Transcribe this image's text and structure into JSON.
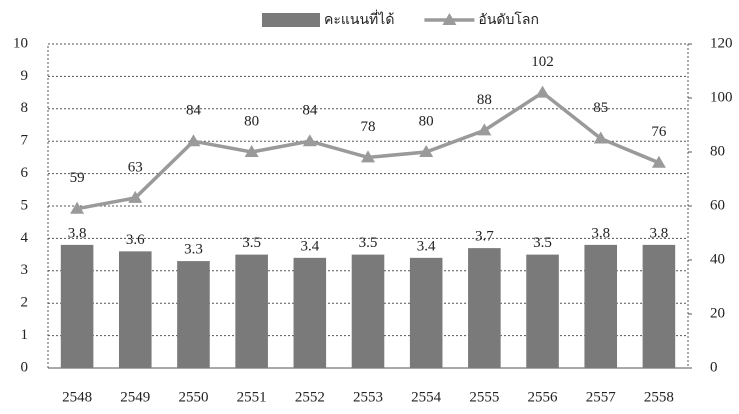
{
  "chart_data": {
    "type": "bar",
    "categories": [
      "2548",
      "2549",
      "2550",
      "2551",
      "2552",
      "2553",
      "2554",
      "2555",
      "2556",
      "2557",
      "2558"
    ],
    "series": [
      {
        "name": "คะแนนที่ได้",
        "type": "bar",
        "color": "#7a7a7a",
        "values": [
          3.8,
          3.6,
          3.3,
          3.5,
          3.4,
          3.5,
          3.4,
          3.7,
          3.5,
          3.8,
          3.8
        ]
      },
      {
        "name": "อันดับโลก",
        "type": "line",
        "axis": "y2",
        "color": "#9a9a9a",
        "values": [
          59,
          63,
          84,
          80,
          84,
          78,
          80,
          88,
          102,
          85,
          76
        ]
      }
    ],
    "ylim": [
      0,
      10
    ],
    "yticks": [
      0,
      1,
      2,
      3,
      4,
      5,
      6,
      7,
      8,
      9,
      10
    ],
    "y2lim": [
      0,
      120
    ],
    "y2ticks": [
      0,
      20,
      40,
      60,
      80,
      100,
      120
    ],
    "grid": true,
    "legend": "top"
  }
}
